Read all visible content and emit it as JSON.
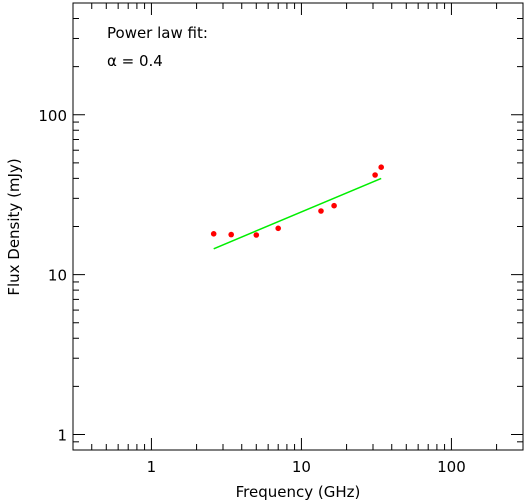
{
  "chart_data": {
    "type": "scatter",
    "xlabel": "Frequency (GHz)",
    "ylabel": "Flux Density (mJy)",
    "xscale": "log",
    "yscale": "log",
    "xlim": [
      0.3,
      300
    ],
    "ylim": [
      0.8,
      500
    ],
    "xticks": [
      {
        "value": 1,
        "label": "1"
      },
      {
        "value": 10,
        "label": "10"
      },
      {
        "value": 100,
        "label": "100"
      }
    ],
    "yticks": [
      {
        "value": 1,
        "label": "1"
      },
      {
        "value": 10,
        "label": "10"
      },
      {
        "value": 100,
        "label": "100"
      }
    ],
    "grid": false,
    "annotations": [
      "Power law fit:",
      "α = 0.4"
    ],
    "series": [
      {
        "kind": "points",
        "color": "#ff0000",
        "x": [
          2.6,
          3.4,
          5.0,
          7.0,
          13.5,
          16.5,
          31.0,
          34.0
        ],
        "y": [
          18.0,
          17.8,
          17.7,
          19.5,
          25.0,
          27.0,
          42.0,
          47.0
        ]
      },
      {
        "kind": "fit-line",
        "color": "#00ee00",
        "x": [
          2.6,
          34.0
        ],
        "y": [
          14.5,
          40.0
        ]
      }
    ]
  }
}
